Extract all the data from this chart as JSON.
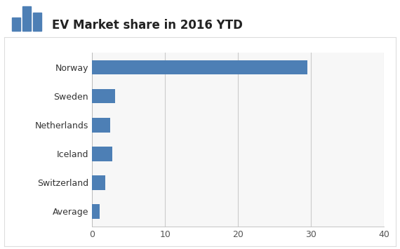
{
  "title": "EV Market share in 2016 YTD",
  "categories": [
    "Average",
    "Switzerland",
    "Iceland",
    "Netherlands",
    "Sweden",
    "Norway"
  ],
  "values": [
    1.0,
    1.8,
    2.8,
    2.5,
    3.2,
    29.5
  ],
  "bar_color": "#4d7fb5",
  "xlim": [
    0,
    40
  ],
  "xticks": [
    0,
    10,
    20,
    30,
    40
  ],
  "bg_color": "#ffffff",
  "plot_bg_color": "#f7f7f7",
  "title_color": "#222222",
  "title_fontsize": 12,
  "tick_fontsize": 9,
  "label_fontsize": 9,
  "bar_height": 0.5,
  "grid_color": "#cccccc",
  "header_line_color": "#4d7fb5",
  "icon_color": "#4d7fb5"
}
